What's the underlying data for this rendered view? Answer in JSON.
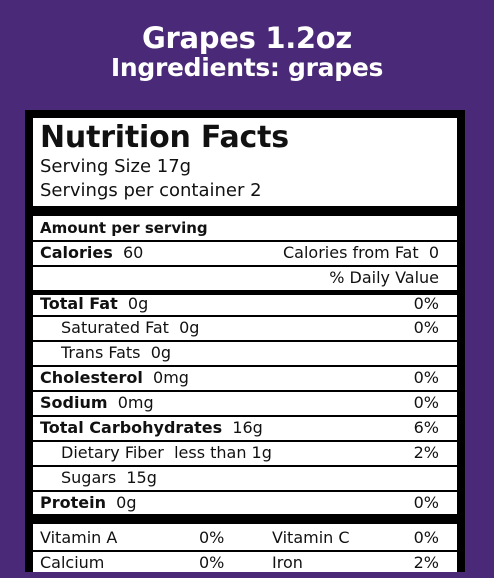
{
  "header": {
    "title": "Grapes 1.2oz",
    "ingredients": "Ingredients: grapes"
  },
  "label": {
    "title": "Nutrition Facts",
    "serving_size": "Serving Size 17g",
    "servings_per_container": "Servings per container 2",
    "amount_per_serving": "Amount per serving",
    "calories": {
      "label": "Calories",
      "value": "60",
      "from_fat_label": "Calories from Fat",
      "from_fat_value": "0"
    },
    "daily_value_header": "% Daily Value",
    "nutrients": [
      {
        "name": "Total Fat",
        "amount": "0g",
        "dv": "0%"
      },
      {
        "name": "Saturated Fat",
        "amount": "0g",
        "dv": "0%"
      },
      {
        "name": "Trans Fats",
        "amount": "0g",
        "dv": ""
      },
      {
        "name": "Cholesterol",
        "amount": "0mg",
        "dv": "0%"
      },
      {
        "name": "Sodium",
        "amount": "0mg",
        "dv": "0%"
      },
      {
        "name": "Total Carbohydrates",
        "amount": "16g",
        "dv": "6%"
      },
      {
        "name": "Dietary Fiber",
        "amount": "less than 1g",
        "dv": "2%"
      },
      {
        "name": "Sugars",
        "amount": "15g",
        "dv": ""
      },
      {
        "name": "Protein",
        "amount": "0g",
        "dv": "0%"
      }
    ],
    "vitamins": [
      {
        "name": "Vitamin A",
        "dv": "0%"
      },
      {
        "name": "Vitamin C",
        "dv": "0%"
      },
      {
        "name": "Calcium",
        "dv": "0%"
      },
      {
        "name": "Iron",
        "dv": "2%"
      }
    ]
  },
  "colors": {
    "background": "#4a2a78",
    "header_text": "#ffffff",
    "label_bg": "#ffffff",
    "label_ink": "#000000"
  }
}
